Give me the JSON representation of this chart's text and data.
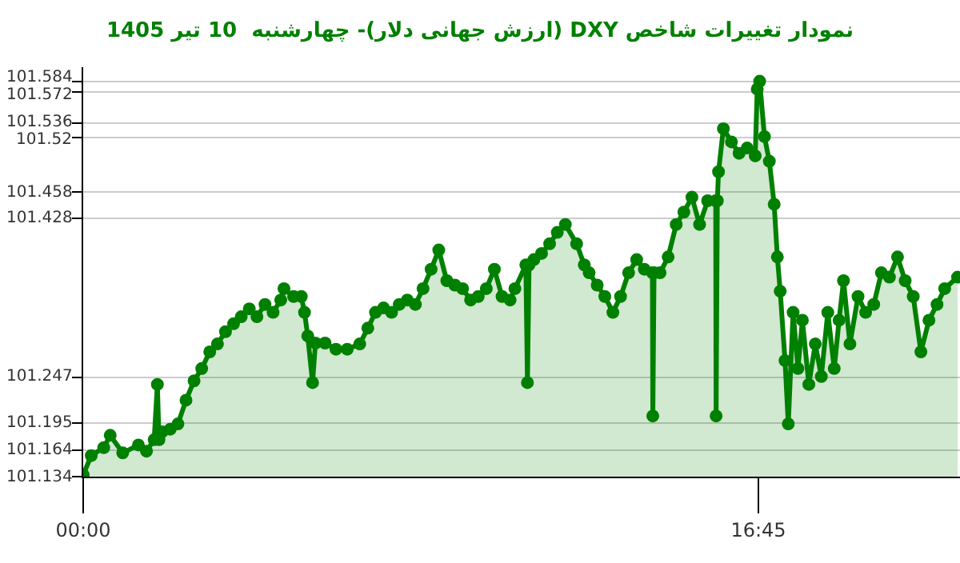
{
  "chart_data": {
    "type": "area",
    "title": "نمودار تغییرات شاخص DXY (ارزش جهانی دلار)- چهارشنبه  10 تیر 1405",
    "x": [
      0,
      0.2,
      0.51,
      0.67,
      0.98,
      1.37,
      1.57,
      1.76,
      1.84,
      1.88,
      1.96,
      2.16,
      2.35,
      2.55,
      2.75,
      2.94,
      3.14,
      3.33,
      3.53,
      3.73,
      3.92,
      4.12,
      4.31,
      4.51,
      4.71,
      4.9,
      4.98,
      5.22,
      5.41,
      5.49,
      5.57,
      5.69,
      5.76,
      6.0,
      6.27,
      6.55,
      6.86,
      7.06,
      7.25,
      7.45,
      7.65,
      7.84,
      8.04,
      8.24,
      8.43,
      8.63,
      8.82,
      9.02,
      9.22,
      9.41,
      9.61,
      9.8,
      10.0,
      10.2,
      10.39,
      10.59,
      10.71,
      10.98,
      11.02,
      11.06,
      11.18,
      11.37,
      11.57,
      11.76,
      11.96,
      12.24,
      12.43,
      12.55,
      12.75,
      12.94,
      13.14,
      13.33,
      13.53,
      13.73,
      13.92,
      14.12,
      14.13,
      14.16,
      14.31,
      14.51,
      14.71,
      14.9,
      15.1,
      15.29,
      15.49,
      15.69,
      15.7,
      15.73,
      15.76,
      15.88,
      16.08,
      16.27,
      16.47,
      16.67,
      16.72,
      16.78,
      16.9,
      17.02,
      17.14,
      17.22,
      17.29,
      17.41,
      17.49,
      17.61,
      17.73,
      17.84,
      18.0,
      18.16,
      18.31,
      18.47,
      18.63,
      18.75,
      18.86,
      19.02,
      19.22,
      19.41,
      19.61,
      19.8,
      20.0,
      20.2,
      20.39,
      20.59,
      20.78,
      20.98,
      21.18,
      21.37,
      21.69
    ],
    "series": [
      {
        "color": "#008000",
        "values": [
          101.136,
          101.158,
          101.167,
          101.181,
          101.161,
          101.17,
          101.163,
          101.176,
          101.239,
          101.176,
          101.185,
          101.188,
          101.194,
          101.221,
          101.243,
          101.257,
          101.276,
          101.285,
          101.299,
          101.308,
          101.316,
          101.325,
          101.316,
          101.33,
          101.321,
          101.335,
          101.348,
          101.339,
          101.339,
          101.321,
          101.294,
          101.241,
          101.286,
          101.286,
          101.279,
          101.279,
          101.285,
          101.303,
          101.321,
          101.326,
          101.321,
          101.33,
          101.335,
          101.33,
          101.348,
          101.37,
          101.392,
          101.357,
          101.352,
          101.348,
          101.335,
          101.339,
          101.348,
          101.37,
          101.339,
          101.335,
          101.348,
          101.375,
          101.241,
          101.375,
          101.381,
          101.388,
          101.399,
          101.412,
          101.421,
          101.399,
          101.375,
          101.366,
          101.352,
          101.339,
          101.321,
          101.339,
          101.366,
          101.381,
          101.37,
          101.366,
          101.203,
          101.366,
          101.366,
          101.384,
          101.421,
          101.435,
          101.452,
          101.421,
          101.448,
          101.448,
          101.203,
          101.448,
          101.481,
          101.53,
          101.515,
          101.502,
          101.508,
          101.499,
          101.575,
          101.584,
          101.521,
          101.493,
          101.444,
          101.384,
          101.345,
          101.266,
          101.194,
          101.321,
          101.257,
          101.312,
          101.239,
          101.285,
          101.248,
          101.321,
          101.257,
          101.312,
          101.357,
          101.285,
          101.339,
          101.321,
          101.33,
          101.366,
          101.361,
          101.384,
          101.357,
          101.339,
          101.276,
          101.312,
          101.33,
          101.348,
          101.361
        ]
      }
    ],
    "xlim": [
      0,
      21.75
    ],
    "xticks": [
      {
        "value": 0,
        "label": "00:00"
      },
      {
        "value": 16.75,
        "label": "16:45"
      }
    ],
    "ylim": [
      101.134,
      101.6
    ],
    "yticks": [
      101.134,
      101.164,
      101.195,
      101.247,
      101.428,
      101.458,
      101.52,
      101.536,
      101.572,
      101.584
    ],
    "grid": "y",
    "marker": "circle",
    "line_style": "solid"
  }
}
